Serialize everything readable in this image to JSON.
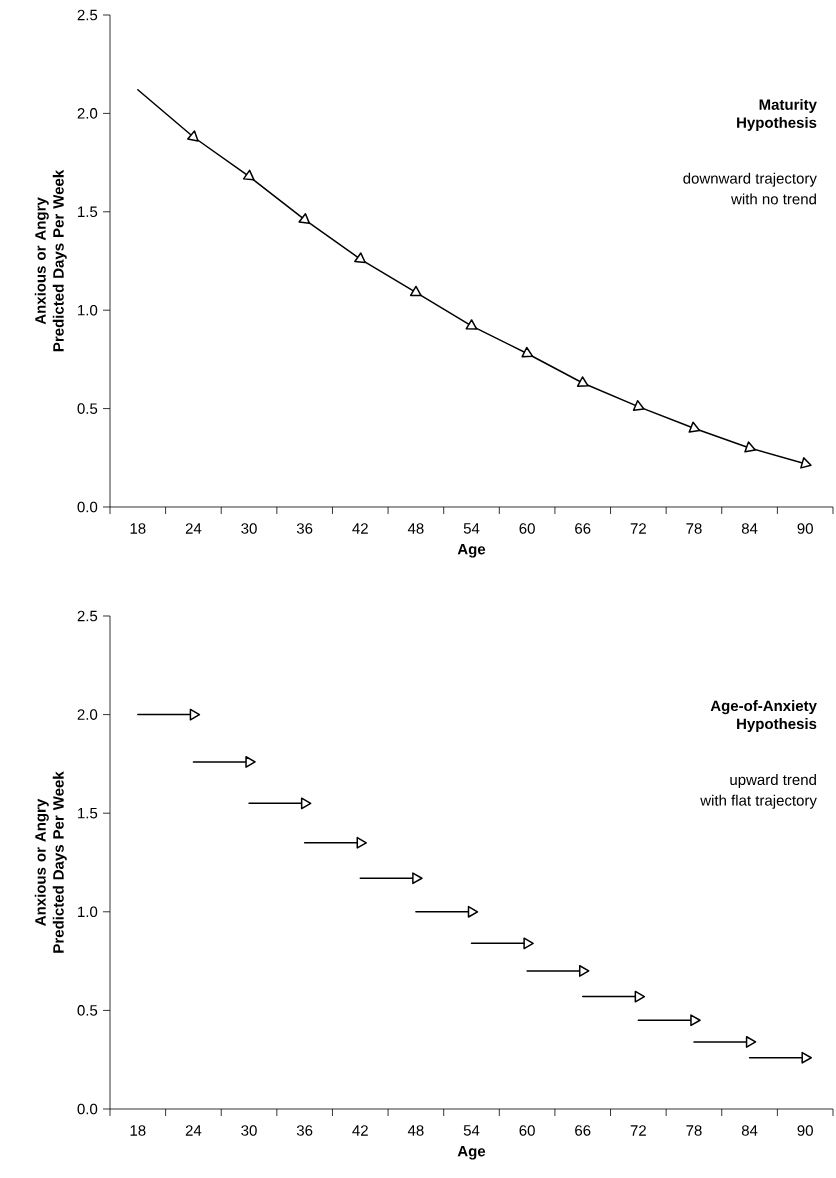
{
  "chart_data": [
    {
      "type": "line",
      "title": "Maturity Hypothesis",
      "annotations": [
        "downward trajectory",
        "with no trend"
      ],
      "xlabel": "Age",
      "ylabel": "Anxious or Angry Predicted Days Per Week",
      "xlim": [
        15,
        93
      ],
      "xticks": [
        {
          "value": 15,
          "label": null
        },
        18,
        {
          "value": 21,
          "label": null
        },
        24,
        {
          "value": 27,
          "label": null
        },
        30,
        {
          "value": 33,
          "label": null
        },
        36,
        {
          "value": 39,
          "label": null
        },
        42,
        {
          "value": 45,
          "label": null
        },
        48,
        {
          "value": 51,
          "label": null
        },
        54,
        {
          "value": 57,
          "label": null
        },
        60,
        {
          "value": 63,
          "label": null
        },
        66,
        {
          "value": 69,
          "label": null
        },
        72,
        {
          "value": 75,
          "label": null
        },
        78,
        {
          "value": 81,
          "label": null
        },
        84,
        {
          "value": 87,
          "label": null
        },
        90,
        {
          "value": 93,
          "label": null
        }
      ],
      "ylim": [
        0,
        2.5
      ],
      "yticks": [
        {
          "value": 0,
          "label": "0.0"
        },
        {
          "value": 0.5,
          "label": "0.5"
        },
        {
          "value": 1,
          "label": "1.0"
        },
        {
          "value": 1.5,
          "label": "1.5"
        },
        {
          "value": 2,
          "label": "2.0"
        },
        {
          "value": 2.5,
          "label": "2.5"
        }
      ],
      "marker": "triangle",
      "series": [
        {
          "color": "#000000",
          "x": [
            18,
            24,
            30,
            36,
            42,
            48,
            54,
            60,
            66,
            72,
            78,
            84,
            90
          ],
          "values": [
            2.12,
            1.88,
            1.68,
            1.46,
            1.26,
            1.09,
            0.92,
            0.78,
            0.63,
            0.51,
            0.4,
            0.3,
            0.22
          ]
        }
      ]
    },
    {
      "type": "line",
      "title": "Age-of-Anxiety Hypothesis",
      "annotations": [
        "upward trend",
        "with flat trajectory"
      ],
      "xlabel": "Age",
      "ylabel": "Anxious or Angry Predicted Days Per Week",
      "xlim": [
        15,
        93
      ],
      "xticks": [
        {
          "value": 15,
          "label": null
        },
        18,
        {
          "value": 21,
          "label": null
        },
        24,
        {
          "value": 27,
          "label": null
        },
        30,
        {
          "value": 33,
          "label": null
        },
        36,
        {
          "value": 39,
          "label": null
        },
        42,
        {
          "value": 45,
          "label": null
        },
        48,
        {
          "value": 51,
          "label": null
        },
        54,
        {
          "value": 57,
          "label": null
        },
        60,
        {
          "value": 63,
          "label": null
        },
        66,
        {
          "value": 69,
          "label": null
        },
        72,
        {
          "value": 75,
          "label": null
        },
        78,
        {
          "value": 81,
          "label": null
        },
        84,
        {
          "value": 87,
          "label": null
        },
        90,
        {
          "value": 93,
          "label": null
        }
      ],
      "ylim": [
        0,
        2.5
      ],
      "yticks": [
        {
          "value": 0,
          "label": "0.0"
        },
        {
          "value": 0.5,
          "label": "0.5"
        },
        {
          "value": 1,
          "label": "1.0"
        },
        {
          "value": 1.5,
          "label": "1.5"
        },
        {
          "value": 2,
          "label": "2.0"
        },
        {
          "value": 2.5,
          "label": "2.5"
        }
      ],
      "marker": "triangle",
      "series": [
        {
          "color": "#000000",
          "x": [
            18,
            24,
            null,
            24,
            30,
            null,
            30,
            36,
            null,
            36,
            42,
            null,
            42,
            48,
            null,
            48,
            54,
            null,
            54,
            60,
            null,
            60,
            66,
            null,
            66,
            72,
            null,
            72,
            78,
            null,
            78,
            84,
            null,
            84,
            90
          ],
          "values": [
            2.0,
            2.0,
            null,
            1.76,
            1.76,
            null,
            1.55,
            1.55,
            null,
            1.35,
            1.35,
            null,
            1.17,
            1.17,
            null,
            1.0,
            1.0,
            null,
            0.84,
            0.84,
            null,
            0.7,
            0.7,
            null,
            0.57,
            0.57,
            null,
            0.45,
            0.45,
            null,
            0.34,
            0.34,
            null,
            0.26,
            0.26
          ]
        }
      ]
    }
  ]
}
